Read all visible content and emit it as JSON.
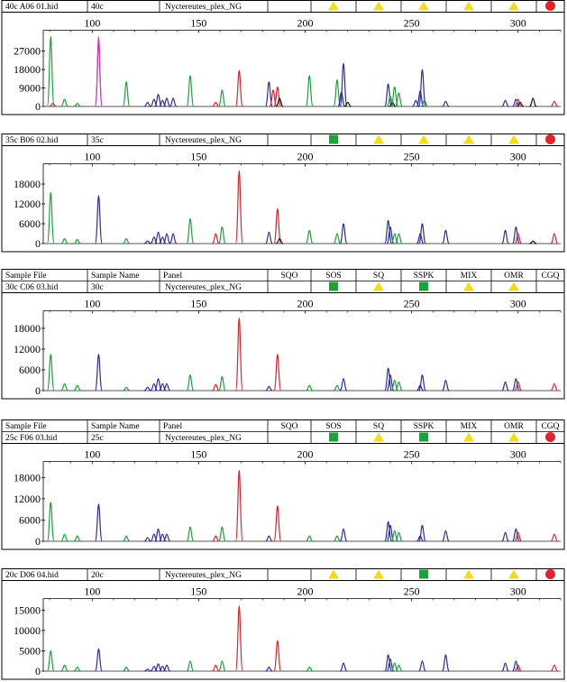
{
  "colors": {
    "green": "#1aa33a",
    "blue": "#2a2aa3",
    "red": "#e0202a",
    "black": "#111111",
    "magenta": "#e040c0",
    "flag_yellow": "#f2dc1e",
    "flag_green": "#19a33a",
    "flag_red": "#e8202a"
  },
  "headers": [
    "Sample File",
    "Sample Name",
    "Panel",
    "SQO",
    "SOS",
    "SQ",
    "SSPK",
    "MIX",
    "OMR",
    "CGQ"
  ],
  "x_ticks": [
    100,
    150,
    200,
    250,
    300
  ],
  "chart_data": [
    {
      "type": "line",
      "sample_file": "40c A06 01.hid",
      "sample_name": "40c",
      "panel": "Nyctereutes_plex_NG",
      "show_headers": false,
      "flags": [
        "",
        "yellow-triangle",
        "yellow-triangle",
        "yellow-triangle",
        "yellow-triangle",
        "yellow-triangle",
        "red-circle"
      ],
      "xlim": [
        77,
        320
      ],
      "ylim": [
        0,
        34500
      ],
      "y_ticks": [
        "27000",
        "18000",
        "9000",
        "0"
      ],
      "y_values": [
        27000,
        18000,
        9000,
        0
      ],
      "peaks": [
        {
          "x": 80.5,
          "y": 34000,
          "c": "green"
        },
        {
          "x": 81.5,
          "y": 1500,
          "c": "red"
        },
        {
          "x": 87,
          "y": 3500,
          "c": "green"
        },
        {
          "x": 93,
          "y": 1500,
          "c": "green"
        },
        {
          "x": 103,
          "y": 31000,
          "c": "blue"
        },
        {
          "x": 103,
          "y": 34000,
          "c": "magenta"
        },
        {
          "x": 116,
          "y": 12000,
          "c": "green"
        },
        {
          "x": 126,
          "y": 2000,
          "c": "blue"
        },
        {
          "x": 129,
          "y": 3500,
          "c": "blue"
        },
        {
          "x": 131,
          "y": 6000,
          "c": "blue"
        },
        {
          "x": 133,
          "y": 3000,
          "c": "blue"
        },
        {
          "x": 135,
          "y": 4000,
          "c": "blue"
        },
        {
          "x": 138,
          "y": 4000,
          "c": "blue"
        },
        {
          "x": 146,
          "y": 15000,
          "c": "green"
        },
        {
          "x": 158,
          "y": 2000,
          "c": "red"
        },
        {
          "x": 161,
          "y": 8000,
          "c": "green"
        },
        {
          "x": 169,
          "y": 17500,
          "c": "red"
        },
        {
          "x": 183,
          "y": 12000,
          "c": "blue"
        },
        {
          "x": 185,
          "y": 8000,
          "c": "red"
        },
        {
          "x": 187,
          "y": 9500,
          "c": "red"
        },
        {
          "x": 188,
          "y": 4000,
          "c": "black"
        },
        {
          "x": 202,
          "y": 15000,
          "c": "green"
        },
        {
          "x": 215,
          "y": 13000,
          "c": "green"
        },
        {
          "x": 217,
          "y": 7000,
          "c": "blue"
        },
        {
          "x": 218,
          "y": 21000,
          "c": "blue"
        },
        {
          "x": 220,
          "y": 2000,
          "c": "black"
        },
        {
          "x": 239,
          "y": 11000,
          "c": "blue"
        },
        {
          "x": 240,
          "y": 5000,
          "c": "green"
        },
        {
          "x": 241,
          "y": 2000,
          "c": "black"
        },
        {
          "x": 242,
          "y": 9500,
          "c": "green"
        },
        {
          "x": 244,
          "y": 6500,
          "c": "green"
        },
        {
          "x": 252,
          "y": 3000,
          "c": "blue"
        },
        {
          "x": 254,
          "y": 7500,
          "c": "blue"
        },
        {
          "x": 255,
          "y": 18000,
          "c": "blue"
        },
        {
          "x": 256,
          "y": 3000,
          "c": "green"
        },
        {
          "x": 266,
          "y": 2500,
          "c": "blue"
        },
        {
          "x": 294,
          "y": 3000,
          "c": "blue"
        },
        {
          "x": 299,
          "y": 3500,
          "c": "blue"
        },
        {
          "x": 300,
          "y": 3500,
          "c": "red"
        },
        {
          "x": 301,
          "y": 2000,
          "c": "black"
        },
        {
          "x": 307,
          "y": 4000,
          "c": "black"
        },
        {
          "x": 317,
          "y": 2500,
          "c": "red"
        }
      ]
    },
    {
      "type": "line",
      "sample_file": "35c B06 02.hid",
      "sample_name": "35c",
      "panel": "Nyctereutes_plex_NG",
      "show_headers": false,
      "flags": [
        "",
        "green-square",
        "yellow-triangle",
        "yellow-triangle",
        "yellow-triangle",
        "yellow-triangle",
        "red-circle"
      ],
      "xlim": [
        77,
        320
      ],
      "ylim": [
        0,
        22500
      ],
      "y_ticks": [
        "18000",
        "12000",
        "6000",
        "0"
      ],
      "y_values": [
        18000,
        12000,
        6000,
        0
      ],
      "peaks": [
        {
          "x": 80.5,
          "y": 15500,
          "c": "green"
        },
        {
          "x": 87,
          "y": 1500,
          "c": "green"
        },
        {
          "x": 93,
          "y": 1200,
          "c": "green"
        },
        {
          "x": 103,
          "y": 14500,
          "c": "blue"
        },
        {
          "x": 116,
          "y": 1500,
          "c": "green"
        },
        {
          "x": 126,
          "y": 800,
          "c": "blue"
        },
        {
          "x": 129,
          "y": 2000,
          "c": "blue"
        },
        {
          "x": 131,
          "y": 3500,
          "c": "blue"
        },
        {
          "x": 133,
          "y": 2000,
          "c": "blue"
        },
        {
          "x": 135,
          "y": 3000,
          "c": "blue"
        },
        {
          "x": 138,
          "y": 3000,
          "c": "blue"
        },
        {
          "x": 146,
          "y": 7500,
          "c": "green"
        },
        {
          "x": 158,
          "y": 3000,
          "c": "red"
        },
        {
          "x": 161,
          "y": 5000,
          "c": "green"
        },
        {
          "x": 169,
          "y": 22000,
          "c": "red"
        },
        {
          "x": 183,
          "y": 3500,
          "c": "blue"
        },
        {
          "x": 187,
          "y": 10500,
          "c": "red"
        },
        {
          "x": 188,
          "y": 1500,
          "c": "black"
        },
        {
          "x": 202,
          "y": 4000,
          "c": "green"
        },
        {
          "x": 215,
          "y": 3000,
          "c": "green"
        },
        {
          "x": 218,
          "y": 6000,
          "c": "blue"
        },
        {
          "x": 239,
          "y": 7000,
          "c": "blue"
        },
        {
          "x": 240,
          "y": 5000,
          "c": "blue"
        },
        {
          "x": 242,
          "y": 3000,
          "c": "green"
        },
        {
          "x": 244,
          "y": 3000,
          "c": "green"
        },
        {
          "x": 254,
          "y": 3000,
          "c": "blue"
        },
        {
          "x": 255,
          "y": 6000,
          "c": "blue"
        },
        {
          "x": 266,
          "y": 4000,
          "c": "blue"
        },
        {
          "x": 294,
          "y": 4000,
          "c": "blue"
        },
        {
          "x": 299,
          "y": 5000,
          "c": "blue"
        },
        {
          "x": 300,
          "y": 3000,
          "c": "red"
        },
        {
          "x": 307,
          "y": 800,
          "c": "black"
        },
        {
          "x": 317,
          "y": 3000,
          "c": "red"
        }
      ]
    },
    {
      "type": "line",
      "sample_file": "30c C06 03.hid",
      "sample_name": "30c",
      "panel": "Nyctereutes_plex_NG",
      "show_headers": true,
      "flags": [
        "",
        "green-square",
        "yellow-triangle",
        "green-square",
        "yellow-triangle",
        "yellow-triangle",
        ""
      ],
      "xlim": [
        77,
        320
      ],
      "ylim": [
        0,
        21500
      ],
      "y_ticks": [
        "18000",
        "12000",
        "6000",
        "0"
      ],
      "y_values": [
        18000,
        12000,
        6000,
        0
      ],
      "peaks": [
        {
          "x": 80.5,
          "y": 10500,
          "c": "green"
        },
        {
          "x": 87,
          "y": 2000,
          "c": "green"
        },
        {
          "x": 93,
          "y": 1500,
          "c": "green"
        },
        {
          "x": 103,
          "y": 10500,
          "c": "blue"
        },
        {
          "x": 116,
          "y": 1000,
          "c": "green"
        },
        {
          "x": 126,
          "y": 1000,
          "c": "blue"
        },
        {
          "x": 129,
          "y": 2000,
          "c": "blue"
        },
        {
          "x": 131,
          "y": 3500,
          "c": "blue"
        },
        {
          "x": 133,
          "y": 2000,
          "c": "blue"
        },
        {
          "x": 135,
          "y": 2000,
          "c": "blue"
        },
        {
          "x": 146,
          "y": 4500,
          "c": "green"
        },
        {
          "x": 158,
          "y": 1800,
          "c": "red"
        },
        {
          "x": 161,
          "y": 4000,
          "c": "green"
        },
        {
          "x": 169,
          "y": 21000,
          "c": "red"
        },
        {
          "x": 183,
          "y": 1200,
          "c": "blue"
        },
        {
          "x": 187,
          "y": 10500,
          "c": "red"
        },
        {
          "x": 202,
          "y": 1500,
          "c": "green"
        },
        {
          "x": 215,
          "y": 1500,
          "c": "green"
        },
        {
          "x": 218,
          "y": 3500,
          "c": "blue"
        },
        {
          "x": 239,
          "y": 6500,
          "c": "blue"
        },
        {
          "x": 240,
          "y": 4500,
          "c": "blue"
        },
        {
          "x": 242,
          "y": 3000,
          "c": "green"
        },
        {
          "x": 244,
          "y": 2500,
          "c": "green"
        },
        {
          "x": 254,
          "y": 1500,
          "c": "blue"
        },
        {
          "x": 255,
          "y": 4500,
          "c": "blue"
        },
        {
          "x": 266,
          "y": 3000,
          "c": "blue"
        },
        {
          "x": 294,
          "y": 2500,
          "c": "blue"
        },
        {
          "x": 299,
          "y": 3500,
          "c": "blue"
        },
        {
          "x": 300,
          "y": 2500,
          "c": "red"
        },
        {
          "x": 317,
          "y": 2000,
          "c": "red"
        }
      ]
    },
    {
      "type": "line",
      "sample_file": "25c F06 03.hid",
      "sample_name": "25c",
      "panel": "Nyctereutes_plex_NG",
      "show_headers": true,
      "flags": [
        "",
        "green-square",
        "yellow-triangle",
        "green-square",
        "yellow-triangle",
        "yellow-triangle",
        "red-circle"
      ],
      "xlim": [
        77,
        320
      ],
      "ylim": [
        0,
        21000
      ],
      "y_ticks": [
        "18000",
        "12000",
        "6000",
        "0"
      ],
      "y_values": [
        18000,
        12000,
        6000,
        0
      ],
      "peaks": [
        {
          "x": 80.5,
          "y": 11000,
          "c": "green"
        },
        {
          "x": 87,
          "y": 2000,
          "c": "green"
        },
        {
          "x": 93,
          "y": 1500,
          "c": "green"
        },
        {
          "x": 103,
          "y": 10500,
          "c": "blue"
        },
        {
          "x": 116,
          "y": 1500,
          "c": "green"
        },
        {
          "x": 126,
          "y": 1000,
          "c": "blue"
        },
        {
          "x": 129,
          "y": 2000,
          "c": "blue"
        },
        {
          "x": 131,
          "y": 3500,
          "c": "blue"
        },
        {
          "x": 133,
          "y": 2000,
          "c": "blue"
        },
        {
          "x": 135,
          "y": 2000,
          "c": "blue"
        },
        {
          "x": 146,
          "y": 4000,
          "c": "green"
        },
        {
          "x": 158,
          "y": 1500,
          "c": "red"
        },
        {
          "x": 161,
          "y": 4000,
          "c": "green"
        },
        {
          "x": 169,
          "y": 20000,
          "c": "red"
        },
        {
          "x": 183,
          "y": 1500,
          "c": "blue"
        },
        {
          "x": 187,
          "y": 10000,
          "c": "red"
        },
        {
          "x": 202,
          "y": 1500,
          "c": "green"
        },
        {
          "x": 215,
          "y": 1500,
          "c": "green"
        },
        {
          "x": 218,
          "y": 3500,
          "c": "blue"
        },
        {
          "x": 239,
          "y": 5500,
          "c": "blue"
        },
        {
          "x": 240,
          "y": 4500,
          "c": "blue"
        },
        {
          "x": 242,
          "y": 3000,
          "c": "green"
        },
        {
          "x": 244,
          "y": 2500,
          "c": "green"
        },
        {
          "x": 254,
          "y": 1500,
          "c": "blue"
        },
        {
          "x": 255,
          "y": 4500,
          "c": "blue"
        },
        {
          "x": 266,
          "y": 3000,
          "c": "blue"
        },
        {
          "x": 294,
          "y": 2500,
          "c": "blue"
        },
        {
          "x": 299,
          "y": 3500,
          "c": "blue"
        },
        {
          "x": 300,
          "y": 2500,
          "c": "red"
        },
        {
          "x": 317,
          "y": 2000,
          "c": "red"
        }
      ]
    },
    {
      "type": "line",
      "sample_file": "20c D06 04.hid",
      "sample_name": "20c",
      "panel": "Nyctereutes_plex_NG",
      "show_headers": false,
      "flags": [
        "",
        "yellow-triangle",
        "yellow-triangle",
        "green-square",
        "yellow-triangle",
        "yellow-triangle",
        "red-circle"
      ],
      "xlim": [
        77,
        320
      ],
      "ylim": [
        0,
        16500
      ],
      "y_ticks": [
        "15000",
        "10000",
        "5000",
        "0"
      ],
      "y_values": [
        15000,
        10000,
        5000,
        0
      ],
      "peaks": [
        {
          "x": 80.5,
          "y": 5000,
          "c": "green"
        },
        {
          "x": 87,
          "y": 1500,
          "c": "green"
        },
        {
          "x": 93,
          "y": 1000,
          "c": "green"
        },
        {
          "x": 103,
          "y": 5500,
          "c": "blue"
        },
        {
          "x": 116,
          "y": 1000,
          "c": "green"
        },
        {
          "x": 126,
          "y": 500,
          "c": "blue"
        },
        {
          "x": 129,
          "y": 1200,
          "c": "blue"
        },
        {
          "x": 131,
          "y": 1800,
          "c": "blue"
        },
        {
          "x": 133,
          "y": 1200,
          "c": "blue"
        },
        {
          "x": 135,
          "y": 1500,
          "c": "blue"
        },
        {
          "x": 146,
          "y": 2500,
          "c": "green"
        },
        {
          "x": 158,
          "y": 1500,
          "c": "red"
        },
        {
          "x": 161,
          "y": 2500,
          "c": "green"
        },
        {
          "x": 169,
          "y": 16000,
          "c": "red"
        },
        {
          "x": 183,
          "y": 1000,
          "c": "blue"
        },
        {
          "x": 187,
          "y": 7500,
          "c": "red"
        },
        {
          "x": 202,
          "y": 1000,
          "c": "green"
        },
        {
          "x": 218,
          "y": 2000,
          "c": "blue"
        },
        {
          "x": 239,
          "y": 4000,
          "c": "blue"
        },
        {
          "x": 240,
          "y": 3000,
          "c": "blue"
        },
        {
          "x": 242,
          "y": 2000,
          "c": "green"
        },
        {
          "x": 244,
          "y": 1500,
          "c": "green"
        },
        {
          "x": 255,
          "y": 2500,
          "c": "blue"
        },
        {
          "x": 266,
          "y": 4000,
          "c": "blue"
        },
        {
          "x": 294,
          "y": 2000,
          "c": "blue"
        },
        {
          "x": 299,
          "y": 2500,
          "c": "blue"
        },
        {
          "x": 300,
          "y": 1500,
          "c": "red"
        },
        {
          "x": 317,
          "y": 1500,
          "c": "red"
        }
      ]
    }
  ]
}
